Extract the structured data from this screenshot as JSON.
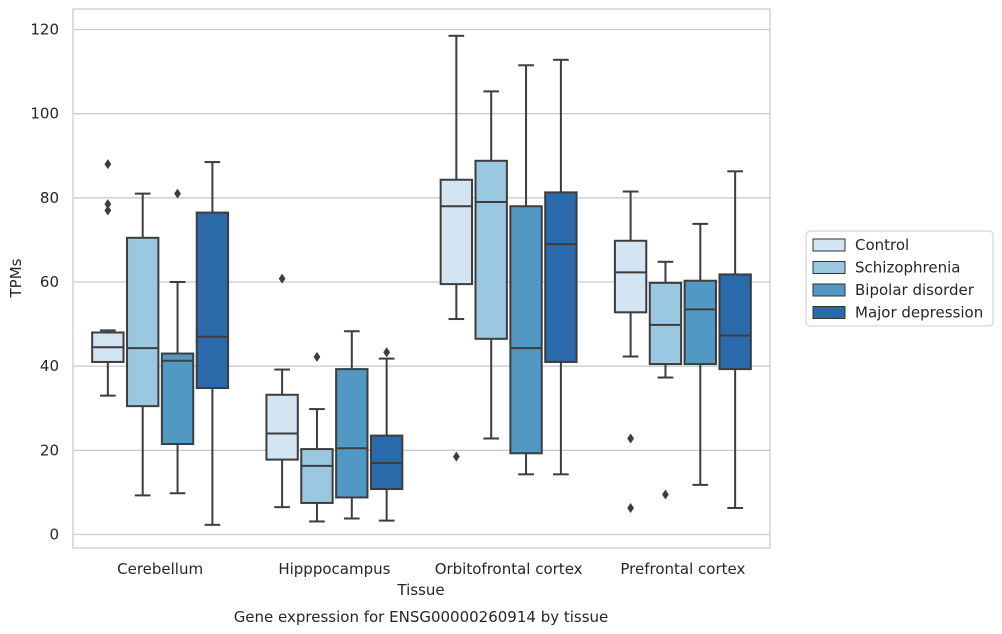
{
  "chart_data": {
    "type": "boxplot",
    "caption": "Gene expression for ENSG00000260914 by tissue",
    "xlabel": "Tissue",
    "ylabel": "TPMs",
    "ylim": [
      -3,
      125
    ],
    "yticks": [
      0,
      20,
      40,
      60,
      80,
      100,
      120
    ],
    "grid": "horizontal",
    "legend_position": "right",
    "categories": [
      "Cerebellum",
      "Hipppocampus",
      "Orbitofrontal cortex",
      "Prefrontal cortex"
    ],
    "series": [
      {
        "name": "Control",
        "color": "#d3e4f3",
        "boxes": [
          {
            "whislo": 33,
            "q1": 41,
            "med": 44.5,
            "q3": 48,
            "whishi": 48.5,
            "fliers": [
              77,
              78.5,
              88
            ]
          },
          {
            "whislo": 6.5,
            "q1": 17.8,
            "med": 24,
            "q3": 33.2,
            "whishi": 39.2,
            "fliers": [
              60.8
            ]
          },
          {
            "whislo": 51.2,
            "q1": 59.5,
            "med": 78,
            "q3": 84.3,
            "whishi": 118.5,
            "fliers": [
              18.5
            ]
          },
          {
            "whislo": 42.3,
            "q1": 52.8,
            "med": 62.3,
            "q3": 69.8,
            "whishi": 81.5,
            "fliers": [
              22.8,
              6.3
            ]
          }
        ]
      },
      {
        "name": "Schizophrenia",
        "color": "#9ac8e0",
        "boxes": [
          {
            "whislo": 9.3,
            "q1": 30.5,
            "med": 44.3,
            "q3": 70.5,
            "whishi": 81,
            "fliers": []
          },
          {
            "whislo": 3.1,
            "q1": 7.5,
            "med": 16.3,
            "q3": 20.3,
            "whishi": 29.8,
            "fliers": [
              42.2
            ]
          },
          {
            "whislo": 22.8,
            "q1": 46.5,
            "med": 79,
            "q3": 88.8,
            "whishi": 105.3,
            "fliers": []
          },
          {
            "whislo": 37.3,
            "q1": 40.5,
            "med": 49.8,
            "q3": 59.8,
            "whishi": 64.8,
            "fliers": [
              9.5
            ]
          }
        ]
      },
      {
        "name": "Bipolar disorder",
        "color": "#5198c5",
        "boxes": [
          {
            "whislo": 9.8,
            "q1": 21.5,
            "med": 41.3,
            "q3": 43,
            "whishi": 60,
            "fliers": [
              81
            ]
          },
          {
            "whislo": 3.8,
            "q1": 8.8,
            "med": 20.5,
            "q3": 39.3,
            "whishi": 48.3,
            "fliers": []
          },
          {
            "whislo": 14.3,
            "q1": 19.3,
            "med": 44.3,
            "q3": 78,
            "whishi": 111.5,
            "fliers": []
          },
          {
            "whislo": 11.8,
            "q1": 40.5,
            "med": 53.5,
            "q3": 60.3,
            "whishi": 73.8,
            "fliers": []
          }
        ]
      },
      {
        "name": "Major depression",
        "color": "#2a69aa",
        "boxes": [
          {
            "whislo": 2.3,
            "q1": 34.8,
            "med": 47,
            "q3": 76.5,
            "whishi": 88.5,
            "fliers": []
          },
          {
            "whislo": 3.3,
            "q1": 10.8,
            "med": 17,
            "q3": 23.5,
            "whishi": 41.8,
            "fliers": [
              43.3
            ]
          },
          {
            "whislo": 14.3,
            "q1": 41,
            "med": 69,
            "q3": 81.3,
            "whishi": 112.8,
            "fliers": []
          },
          {
            "whislo": 6.3,
            "q1": 39.3,
            "med": 47.3,
            "q3": 61.8,
            "whishi": 86.3,
            "fliers": []
          }
        ]
      }
    ]
  }
}
